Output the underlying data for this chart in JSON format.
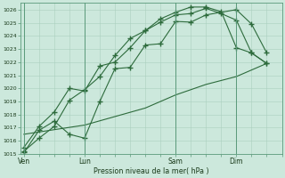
{
  "background_color": "#cce8dc",
  "grid_color": "#aacfbf",
  "line_color": "#2d6b3c",
  "xlabel": "Pression niveau de la mer( hPa )",
  "ylim": [
    1015,
    1026.5
  ],
  "yticks": [
    1015,
    1016,
    1017,
    1018,
    1019,
    1020,
    1021,
    1022,
    1023,
    1024,
    1025,
    1026
  ],
  "xtick_labels": [
    "Ven",
    "Lun",
    "Sam",
    "Dim"
  ],
  "xtick_positions": [
    0,
    4,
    10,
    14
  ],
  "xlim": [
    -0.2,
    17.0
  ],
  "line1_x": [
    0,
    1,
    2,
    3,
    4,
    5,
    6,
    7,
    8,
    9,
    10,
    11,
    12,
    14,
    15,
    16
  ],
  "line1_y": [
    1015.1,
    1016.8,
    1017.5,
    1016.5,
    1016.2,
    1019.0,
    1021.5,
    1021.6,
    1023.3,
    1023.4,
    1025.1,
    1025.05,
    1025.6,
    1026.0,
    1024.9,
    1022.7
  ],
  "line2_x": [
    0,
    1,
    2,
    3,
    4,
    5,
    6,
    7,
    8,
    9,
    10,
    11,
    12,
    13,
    14,
    15,
    16
  ],
  "line2_y": [
    1015.5,
    1017.1,
    1018.2,
    1020.0,
    1019.8,
    1021.7,
    1022.0,
    1023.1,
    1024.4,
    1025.05,
    1025.6,
    1025.7,
    1026.1,
    1025.7,
    1025.2,
    1022.7,
    1021.9
  ],
  "line3_x": [
    0,
    1,
    2,
    3,
    4,
    5,
    6,
    7,
    8,
    9,
    10,
    11,
    12,
    13,
    14,
    15,
    16
  ],
  "line3_y": [
    1015.2,
    1016.2,
    1017.1,
    1019.1,
    1019.9,
    1020.9,
    1022.5,
    1023.8,
    1024.4,
    1025.3,
    1025.8,
    1026.2,
    1026.2,
    1025.85,
    1023.1,
    1022.7,
    1021.9
  ],
  "line4_x": [
    0,
    4,
    8,
    10,
    12,
    14,
    16
  ],
  "line4_y": [
    1016.5,
    1017.2,
    1018.5,
    1019.5,
    1020.3,
    1020.9,
    1021.9
  ]
}
